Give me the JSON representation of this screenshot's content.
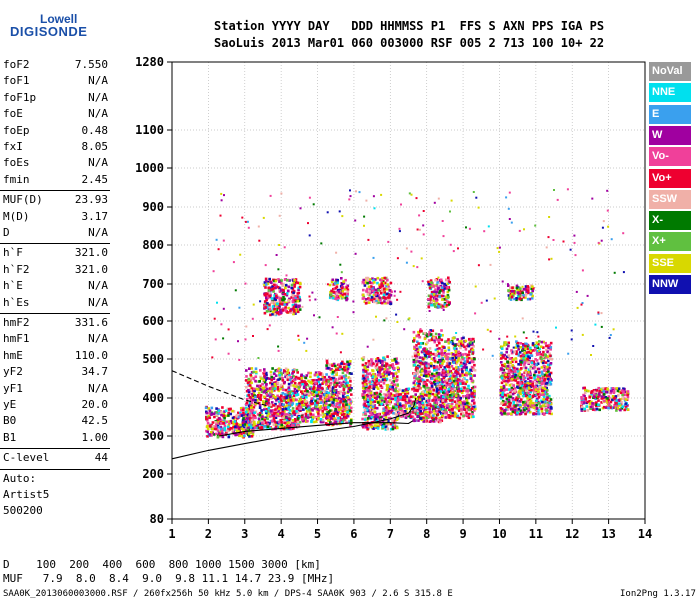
{
  "logo": {
    "top": "Lowell",
    "main": "DIGISONDE"
  },
  "header": {
    "line1": "Station YYYY DAY   DDD HHMMSS P1  FFS S AXN PPS IGA PS",
    "line2": "SaoLuis 2013 Mar01 060 003000 RSF 005 2 713 100 10+ 22"
  },
  "params_group1": [
    {
      "label": "foF2",
      "value": "7.550"
    },
    {
      "label": "foF1",
      "value": "N/A"
    },
    {
      "label": "foF1p",
      "value": "N/A"
    },
    {
      "label": "foE",
      "value": "N/A"
    },
    {
      "label": "foEp",
      "value": "0.48"
    },
    {
      "label": "fxI",
      "value": "8.05"
    },
    {
      "label": "foEs",
      "value": "N/A"
    },
    {
      "label": "fmin",
      "value": "2.45"
    }
  ],
  "params_group2": [
    {
      "label": "MUF(D)",
      "value": "23.93"
    },
    {
      "label": "M(D)",
      "value": "3.17"
    },
    {
      "label": "D",
      "value": "N/A"
    }
  ],
  "params_group3": [
    {
      "label": "h`F",
      "value": "321.0"
    },
    {
      "label": "h`F2",
      "value": "321.0"
    },
    {
      "label": "h`E",
      "value": "N/A"
    },
    {
      "label": "h`Es",
      "value": "N/A"
    }
  ],
  "params_group4": [
    {
      "label": "hmF2",
      "value": "331.6"
    },
    {
      "label": "hmF1",
      "value": "N/A"
    },
    {
      "label": "hmE",
      "value": "110.0"
    },
    {
      "label": "yF2",
      "value": "34.7"
    },
    {
      "label": "yF1",
      "value": "N/A"
    },
    {
      "label": "yE",
      "value": "20.0"
    },
    {
      "label": "B0",
      "value": "42.5"
    },
    {
      "label": "B1",
      "value": "1.00"
    }
  ],
  "clevel": {
    "label": "C-level",
    "value": "44"
  },
  "auto_text": [
    "Auto:",
    "Artist5",
    "500200"
  ],
  "bottom": {
    "d_row": "D    100  200  400  600  800 1000 1500 3000 [km]",
    "muf_row": "MUF   7.9  8.0  8.4  9.0  9.8 11.1 14.7 23.9 [MHz]",
    "footer": "SAA0K_2013060003000.RSF / 260fx256h 50 kHz 5.0 km / DPS-4 SAA0K 903 / 2.6 S 315.8 E",
    "version": "Ion2Png 1.3.17"
  },
  "legend": [
    {
      "label": "NoVal",
      "color": "#999999"
    },
    {
      "label": "NNE",
      "color": "#00e0ee"
    },
    {
      "label": "E",
      "color": "#3aa0ee"
    },
    {
      "label": "W",
      "color": "#a000a0"
    },
    {
      "label": "Vo-",
      "color": "#f0409a"
    },
    {
      "label": "Vo+",
      "color": "#ee0030"
    },
    {
      "label": "SSW",
      "color": "#f0b0a8"
    },
    {
      "label": "X-",
      "color": "#007a00"
    },
    {
      "label": "X+",
      "color": "#60c040"
    },
    {
      "label": "SSE",
      "color": "#d8d800"
    },
    {
      "label": "NNW",
      "color": "#1010b0"
    }
  ],
  "chart_data": {
    "type": "scatter",
    "xlim": [
      1,
      14
    ],
    "ylim": [
      80,
      1280
    ],
    "x_ticks": [
      "1",
      "2",
      "3",
      "4",
      "5",
      "6",
      "7",
      "8",
      "9",
      "10",
      "11",
      "12",
      "13",
      "14"
    ],
    "y_ticks": [
      "80",
      "200",
      "300",
      "400",
      "500",
      "600",
      "700",
      "800",
      "900",
      "1000",
      "1100",
      "1280"
    ],
    "y_ticks_numeric": [
      80,
      200,
      300,
      400,
      500,
      600,
      700,
      800,
      900,
      1000,
      1100,
      1280
    ],
    "grid": true,
    "echo_blocks": [
      {
        "x": [
          1.9,
          3.2
        ],
        "y": [
          300,
          380
        ]
      },
      {
        "x": [
          3.0,
          4.5
        ],
        "y": [
          320,
          480
        ]
      },
      {
        "x": [
          4.5,
          5.2
        ],
        "y": [
          340,
          470
        ]
      },
      {
        "x": [
          5.2,
          5.9
        ],
        "y": [
          330,
          500
        ]
      },
      {
        "x": [
          6.2,
          7.2
        ],
        "y": [
          320,
          510
        ]
      },
      {
        "x": [
          7.2,
          7.6
        ],
        "y": [
          350,
          430
        ]
      },
      {
        "x": [
          7.6,
          8.4
        ],
        "y": [
          340,
          580
        ]
      },
      {
        "x": [
          8.4,
          9.3
        ],
        "y": [
          350,
          560
        ]
      },
      {
        "x": [
          10.0,
          11.4
        ],
        "y": [
          360,
          550
        ]
      },
      {
        "x": [
          12.2,
          13.5
        ],
        "y": [
          370,
          430
        ]
      },
      {
        "x": [
          3.5,
          4.5
        ],
        "y": [
          620,
          720
        ]
      },
      {
        "x": [
          5.3,
          5.8
        ],
        "y": [
          660,
          720
        ]
      },
      {
        "x": [
          6.2,
          7.0
        ],
        "y": [
          650,
          720
        ]
      },
      {
        "x": [
          8.0,
          8.6
        ],
        "y": [
          640,
          720
        ]
      },
      {
        "x": [
          10.2,
          10.9
        ],
        "y": [
          660,
          700
        ]
      }
    ],
    "profile_solid": [
      [
        1,
        240
      ],
      [
        2,
        262
      ],
      [
        3,
        280
      ],
      [
        4,
        298
      ],
      [
        5,
        312
      ],
      [
        6,
        325
      ],
      [
        7,
        345
      ],
      [
        7.5,
        360
      ],
      [
        7.65,
        380
      ],
      [
        7.7,
        400
      ]
    ],
    "profile_solid_lower": [
      [
        2.3,
        300
      ],
      [
        3,
        312
      ],
      [
        4,
        320
      ],
      [
        5,
        328
      ],
      [
        6,
        335
      ],
      [
        7,
        335
      ],
      [
        7.5,
        333
      ],
      [
        7.62,
        340
      ]
    ],
    "profile_dashed": [
      [
        1,
        470
      ],
      [
        2,
        430
      ],
      [
        3,
        395
      ],
      [
        3.6,
        380
      ]
    ]
  }
}
